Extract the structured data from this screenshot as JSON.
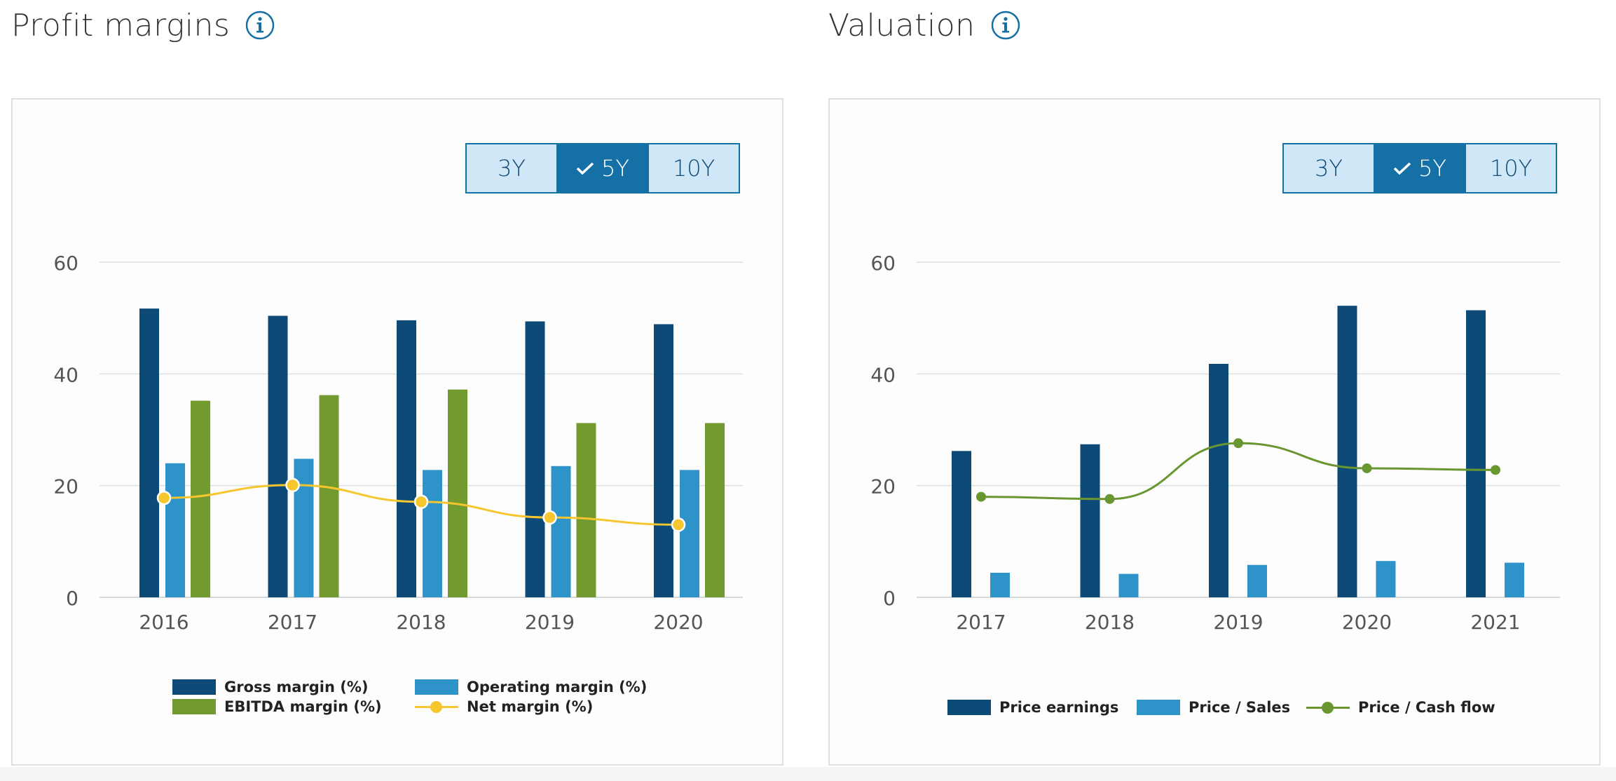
{
  "profit": {
    "title": "Profit margins",
    "range_buttons": {
      "b3y": "3Y",
      "b5y": "5Y",
      "b10y": "10Y",
      "selected": "5Y"
    },
    "legend": {
      "gross": "Gross margin (%)",
      "operating": "Operating margin (%)",
      "ebitda": "EBITDA margin (%)",
      "net": "Net margin (%)"
    }
  },
  "valuation": {
    "title": "Valuation",
    "range_buttons": {
      "b3y": "3Y",
      "b5y": "5Y",
      "b10y": "10Y",
      "selected": "5Y"
    },
    "legend": {
      "pe": "Price earnings",
      "ps": "Price / Sales",
      "pcf": "Price / Cash flow"
    }
  },
  "colors": {
    "dark_blue": "#0d4a78",
    "light_blue": "#2e93c8",
    "green": "#739a2f",
    "yellow": "#f6c62f",
    "pcf_green": "#6a9631",
    "accent": "#1570a6"
  },
  "chart_data": [
    {
      "id": "profit-margins",
      "type": "bar",
      "title": "Profit margins",
      "categories": [
        "2016",
        "2017",
        "2018",
        "2019",
        "2020"
      ],
      "ylim": [
        0,
        60
      ],
      "yticks": [
        0,
        20,
        40,
        60
      ],
      "grid": true,
      "legend_position": "bottom",
      "series": [
        {
          "name": "Gross margin (%)",
          "kind": "bar",
          "color": "#0d4a78",
          "values": [
            51.7,
            50.4,
            49.6,
            49.4,
            48.9
          ]
        },
        {
          "name": "Operating margin (%)",
          "kind": "bar",
          "color": "#2e93c8",
          "values": [
            24.0,
            24.8,
            22.8,
            23.5,
            22.8
          ]
        },
        {
          "name": "EBITDA margin (%)",
          "kind": "bar",
          "color": "#739a2f",
          "values": [
            35.2,
            36.2,
            37.2,
            31.2,
            31.2
          ]
        },
        {
          "name": "Net margin (%)",
          "kind": "line",
          "color": "#f6c62f",
          "values": [
            17.8,
            20.1,
            17.1,
            14.3,
            13.0
          ]
        }
      ]
    },
    {
      "id": "valuation",
      "type": "bar",
      "title": "Valuation",
      "categories": [
        "2017",
        "2018",
        "2019",
        "2020",
        "2021"
      ],
      "ylim": [
        0,
        60
      ],
      "yticks": [
        0,
        20,
        40,
        60
      ],
      "grid": true,
      "legend_position": "bottom",
      "series": [
        {
          "name": "Price earnings",
          "kind": "bar",
          "color": "#0d4a78",
          "values": [
            26.2,
            27.4,
            41.8,
            52.2,
            51.4
          ]
        },
        {
          "name": "Price / Sales",
          "kind": "bar",
          "color": "#2e93c8",
          "values": [
            4.4,
            4.2,
            5.8,
            6.5,
            6.2
          ]
        },
        {
          "name": "Price / Cash flow",
          "kind": "line",
          "color": "#6a9631",
          "values": [
            18.0,
            17.6,
            27.6,
            23.1,
            22.8
          ]
        }
      ]
    }
  ]
}
